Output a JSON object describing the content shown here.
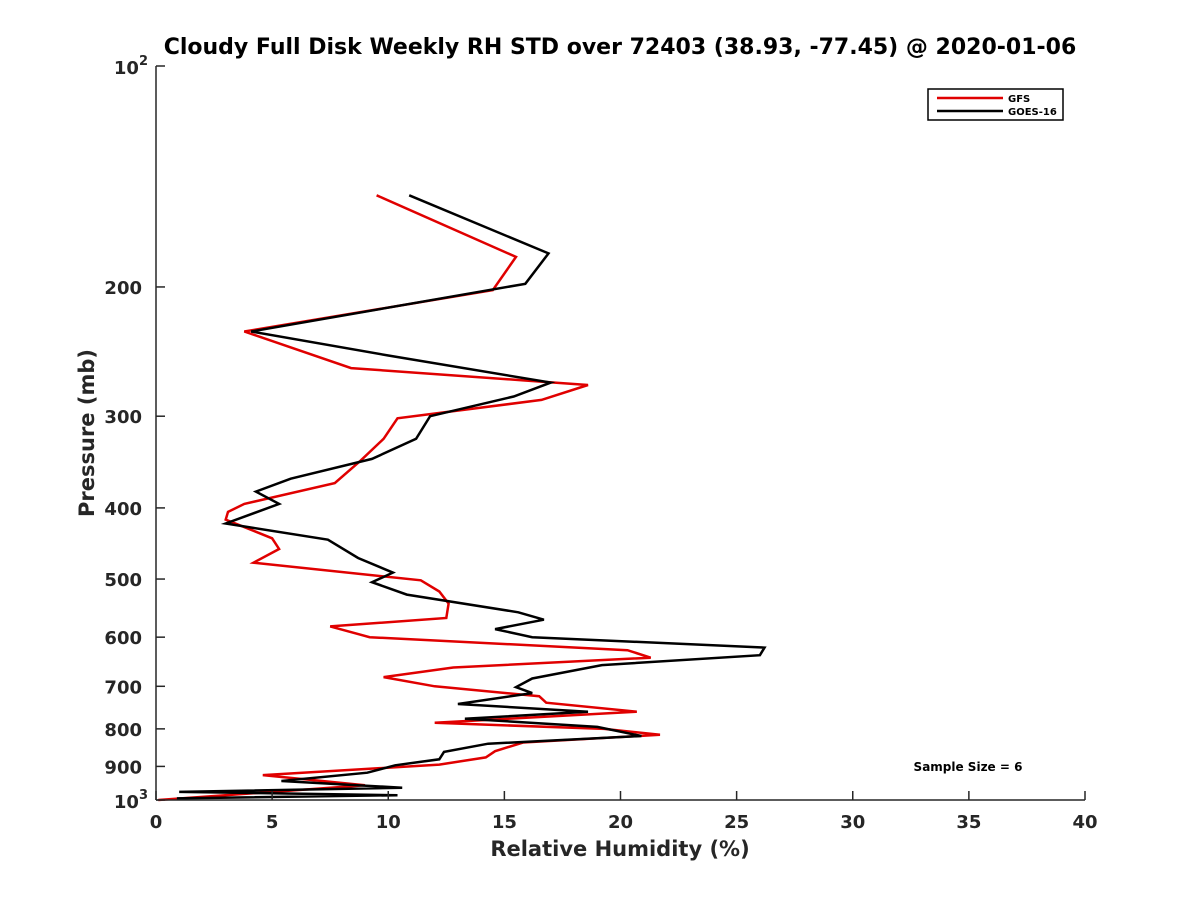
{
  "chart_data": {
    "type": "line",
    "title": "Cloudy Full Disk Weekly RH STD over 72403 (38.93, -77.45) @ 2020-01-06",
    "xlabel": "Relative Humidity (%)",
    "ylabel": "Pressure (mb)",
    "xlim": [
      0,
      40
    ],
    "ylim": [
      1000,
      100
    ],
    "y_scale": "log",
    "y_reversed": true,
    "grid": false,
    "legend_position": "top-right",
    "x_ticks": [
      "0",
      "5",
      "10",
      "15",
      "20",
      "25",
      "30",
      "35",
      "40"
    ],
    "y_ticks": [
      "10^2",
      "200",
      "300",
      "400",
      "500",
      "600",
      "700",
      "800",
      "900",
      "10^3"
    ],
    "series": [
      {
        "name": "GFS",
        "color": "#e00000",
        "x": [
          9.5,
          15.5,
          14.5,
          3.8,
          8.4,
          18.6,
          16.6,
          10.4,
          9.8,
          8.8,
          7.7,
          3.8,
          3.1,
          3.0,
          5.0,
          5.3,
          4.2,
          11.4,
          12.2,
          12.6,
          12.5,
          7.5,
          9.2,
          20.3,
          21.3,
          12.8,
          9.8,
          12.0,
          16.5,
          16.8,
          20.7,
          12.0,
          19.3,
          21.7,
          15.8,
          14.6,
          14.2,
          12.2,
          4.6,
          9.0,
          0.1
        ],
        "y": [
          150,
          182,
          202,
          230,
          258,
          272,
          285,
          302,
          322,
          345,
          370,
          395,
          405,
          415,
          440,
          455,
          475,
          502,
          520,
          540,
          565,
          580,
          600,
          625,
          640,
          660,
          680,
          700,
          722,
          737,
          758,
          785,
          800,
          815,
          835,
          858,
          875,
          895,
          925,
          955,
          1000
        ]
      },
      {
        "name": "GOES-16",
        "color": "#000000",
        "x": [
          10.9,
          16.9,
          15.9,
          4.1,
          10.0,
          17.0,
          15.4,
          11.8,
          11.2,
          9.3,
          5.8,
          4.3,
          5.3,
          3.0,
          7.4,
          8.7,
          10.2,
          9.3,
          10.8,
          15.6,
          16.7,
          14.6,
          16.2,
          26.2,
          26.0,
          19.2,
          16.2,
          15.5,
          16.2,
          13.0,
          18.6,
          13.3,
          19.0,
          20.9,
          14.3,
          12.4,
          12.2,
          10.3,
          9.1,
          5.4,
          10.6,
          1.0,
          10.4,
          0.9
        ],
        "y": [
          150,
          180,
          198,
          230,
          248,
          270,
          282,
          300,
          322,
          343,
          365,
          380,
          395,
          420,
          442,
          468,
          490,
          505,
          525,
          555,
          568,
          585,
          600,
          620,
          635,
          655,
          683,
          702,
          715,
          740,
          758,
          775,
          795,
          818,
          838,
          860,
          880,
          897,
          918,
          942,
          962,
          975,
          985,
          995
        ]
      }
    ],
    "annotations": [
      "Sample Size = 6"
    ]
  }
}
